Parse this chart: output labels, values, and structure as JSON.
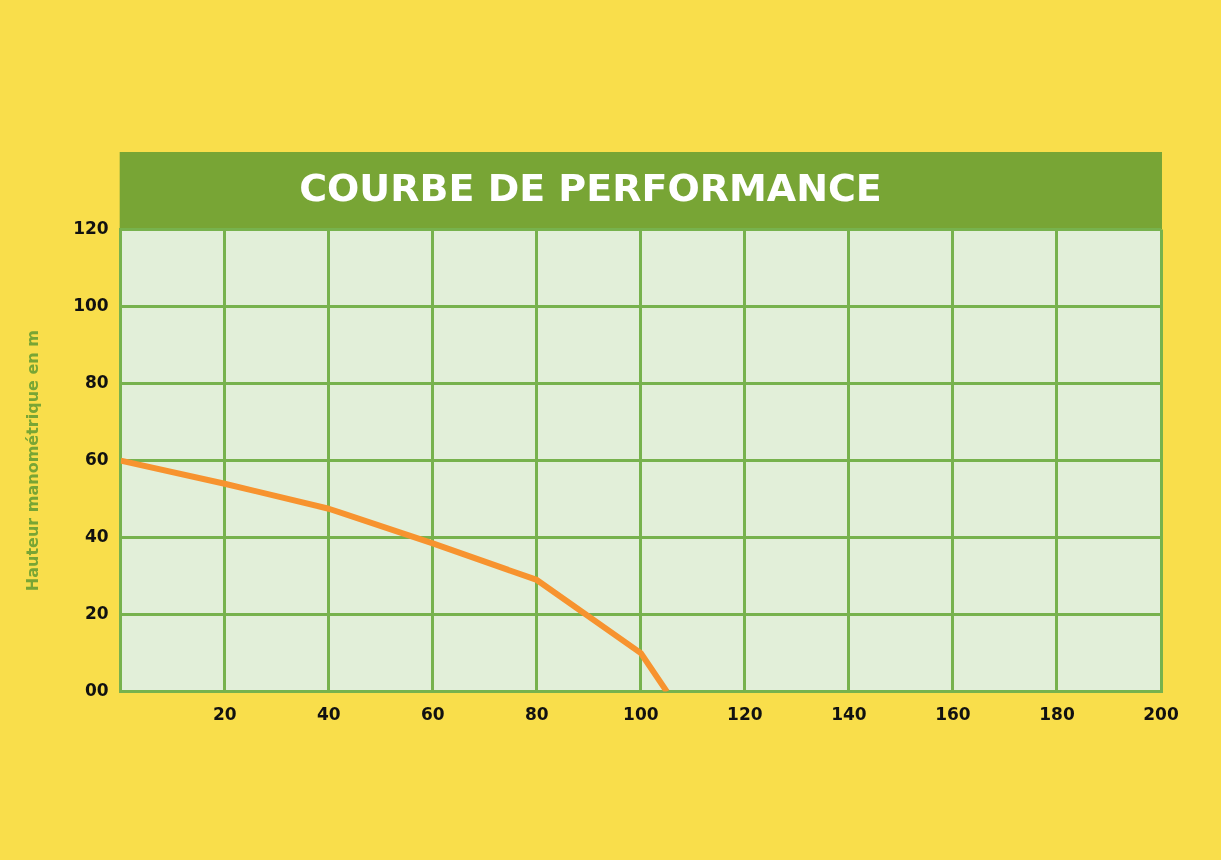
{
  "chart_data": {
    "type": "line",
    "title": "COURBE DE PERFORMANCE",
    "ylabel": "Hauteur manométrique en m",
    "x": [
      0,
      20,
      40,
      60,
      80,
      100,
      105
    ],
    "values": [
      60,
      54,
      47.5,
      38.5,
      29,
      10,
      0
    ],
    "color": "#f7932f",
    "marker": "none",
    "xlim": [
      0,
      200
    ],
    "xticks": [
      {
        "value": 0,
        "label": null
      },
      20,
      40,
      60,
      80,
      100,
      120,
      140,
      160,
      180,
      200
    ],
    "ylim": [
      0,
      120
    ],
    "yticks": [
      {
        "value": 0,
        "label": "00"
      },
      20,
      40,
      60,
      80,
      100,
      120
    ],
    "grid": true
  }
}
